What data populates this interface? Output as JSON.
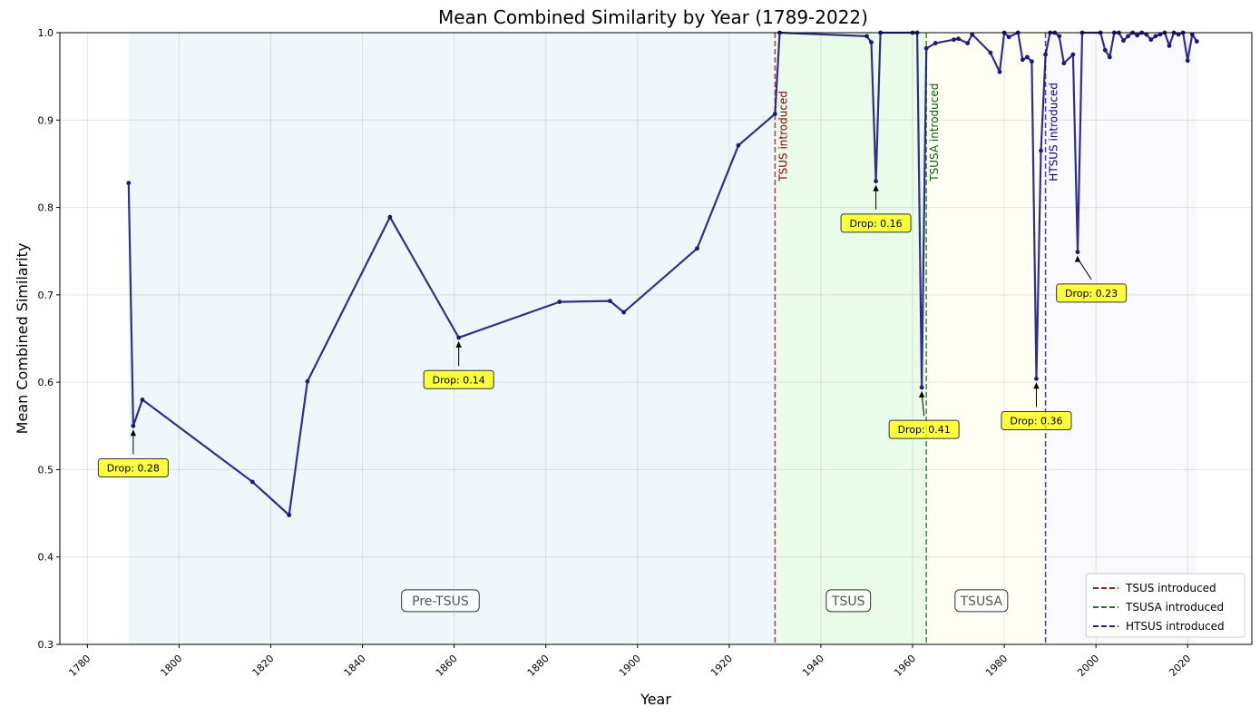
{
  "chart_data": {
    "type": "line",
    "title": "Mean Combined Similarity by Year (1789-2022)",
    "xlabel": "Year",
    "ylabel": "Mean Combined Similarity",
    "xlim": [
      1774,
      2034
    ],
    "ylim": [
      0.3,
      1.0
    ],
    "xticks": [
      1780,
      1800,
      1820,
      1840,
      1860,
      1880,
      1900,
      1920,
      1940,
      1960,
      1980,
      2000,
      2020
    ],
    "yticks": [
      0.3,
      0.4,
      0.5,
      0.6,
      0.7,
      0.8,
      0.9,
      1.0
    ],
    "xtick_labels": [
      "1780",
      "1800",
      "1820",
      "1840",
      "1860",
      "1880",
      "1900",
      "1920",
      "1940",
      "1960",
      "1980",
      "2000",
      "2020"
    ],
    "ytick_labels": [
      "0.3",
      "0.4",
      "0.5",
      "0.6",
      "0.7",
      "0.8",
      "0.9",
      "1.0"
    ],
    "grid": true,
    "line_color": "#1a1a7a",
    "series": [
      {
        "x": [
          1789,
          1790,
          1792,
          1816,
          1824,
          1828,
          1846,
          1861,
          1883,
          1894,
          1897,
          1913,
          1922,
          1930,
          1931,
          1950,
          1951,
          1952,
          1953,
          1960,
          1961,
          1962,
          1963,
          1965,
          1969,
          1970,
          1972,
          1973,
          1977,
          1979,
          1980,
          1981,
          1983,
          1984,
          1985,
          1986,
          1987,
          1988,
          1989,
          1990,
          1991,
          1992,
          1993,
          1995,
          1996,
          1997,
          2001,
          2002,
          2003,
          2004,
          2005,
          2006,
          2007,
          2008,
          2009,
          2010,
          2011,
          2012,
          2013,
          2014,
          2015,
          2016,
          2017,
          2018,
          2019,
          2020,
          2021,
          2022
        ],
        "values": [
          0.828,
          0.55,
          0.58,
          0.486,
          0.448,
          0.601,
          0.789,
          0.651,
          0.692,
          0.693,
          0.68,
          0.753,
          0.871,
          0.907,
          1.0,
          0.996,
          0.989,
          0.83,
          1.0,
          1.0,
          1.0,
          0.594,
          0.982,
          0.988,
          0.992,
          0.993,
          0.988,
          0.998,
          0.977,
          0.955,
          1.0,
          0.995,
          1.0,
          0.969,
          0.972,
          0.967,
          0.604,
          0.865,
          0.975,
          1.0,
          1.0,
          0.996,
          0.965,
          0.975,
          0.749,
          1.0,
          1.0,
          0.98,
          0.972,
          1.0,
          1.0,
          0.991,
          0.996,
          1.0,
          0.997,
          1.0,
          0.998,
          0.992,
          0.996,
          0.998,
          1.0,
          0.985,
          1.0,
          0.998,
          1.0,
          0.968,
          0.998,
          0.99
        ]
      }
    ],
    "eras": [
      {
        "label": "Pre-TSUS",
        "x_start": 1789,
        "x_end": 1930,
        "color": "#add8e6",
        "label_x": 1857,
        "label_y": 0.35
      },
      {
        "label": "TSUS",
        "x_start": 1930,
        "x_end": 1963,
        "color": "#90ee90",
        "label_x": 1946,
        "label_y": 0.35
      },
      {
        "label": "TSUSA",
        "x_start": 1963,
        "x_end": 1989,
        "color": "#fffacd",
        "label_x": 1975,
        "label_y": 0.35
      },
      {
        "label": "",
        "x_start": 1989,
        "x_end": 2022,
        "color": "#e6e6fa",
        "label_x": 2005,
        "label_y": 0.35
      }
    ],
    "vlines": [
      {
        "x": 1930,
        "label": "TSUS introduced",
        "color": "#8b0000",
        "label_color": "#8b0000"
      },
      {
        "x": 1963,
        "label": "TSUSA introduced",
        "color": "#006400",
        "label_color": "#006400"
      },
      {
        "x": 1989,
        "label": "HTSUS introduced",
        "color": "#00008b",
        "label_color": "#00008b"
      }
    ],
    "annotations": [
      {
        "text": "Drop: 0.28",
        "x": 1790,
        "y": 0.55,
        "text_x": 1790,
        "text_y": 0.502
      },
      {
        "text": "Drop: 0.14",
        "x": 1861,
        "y": 0.651,
        "text_x": 1861,
        "text_y": 0.603
      },
      {
        "text": "Drop: 0.16",
        "x": 1952,
        "y": 0.83,
        "text_x": 1952,
        "text_y": 0.782
      },
      {
        "text": "Drop: 0.41",
        "x": 1962,
        "y": 0.594,
        "text_x": 1962.5,
        "text_y": 0.546
      },
      {
        "text": "Drop: 0.36",
        "x": 1987,
        "y": 0.604,
        "text_x": 1987,
        "text_y": 0.556
      },
      {
        "text": "Drop: 0.23",
        "x": 1996,
        "y": 0.749,
        "text_x": 1999,
        "text_y": 0.702
      }
    ],
    "legend": {
      "position": "lower-right",
      "entries": [
        {
          "label": "TSUS introduced",
          "color": "#8b0000"
        },
        {
          "label": "TSUSA introduced",
          "color": "#006400"
        },
        {
          "label": "HTSUS introduced",
          "color": "#00008b"
        }
      ]
    }
  }
}
